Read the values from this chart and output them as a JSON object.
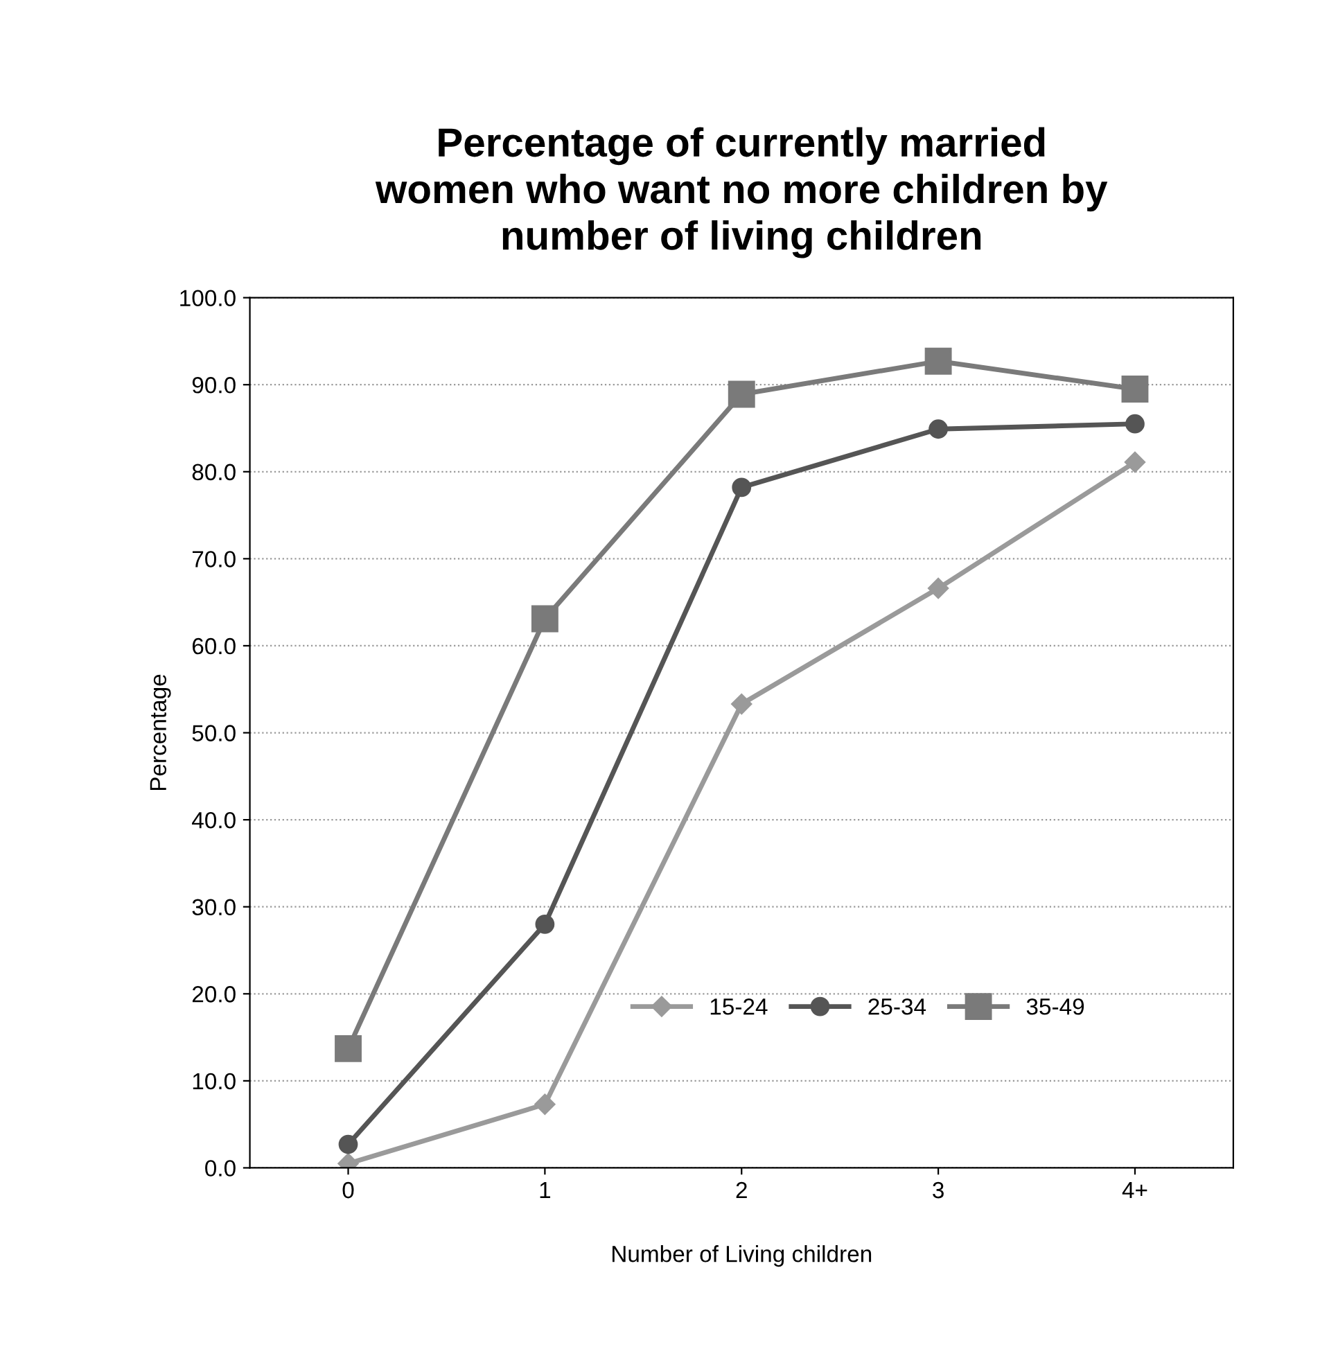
{
  "chart_data": {
    "type": "line",
    "title": "Percentage of currently married\nwomen who want no more children by\nnumber of living children",
    "xlabel": "Number of Living children",
    "ylabel": "Percentage",
    "categories": [
      "0",
      "1",
      "2",
      "3",
      "4+"
    ],
    "series": [
      {
        "name": "15-24",
        "color": "#9a9a9a",
        "marker": "diamond",
        "values": [
          0.5,
          7.3,
          53.3,
          66.6,
          81.1
        ]
      },
      {
        "name": "25-34",
        "color": "#555555",
        "marker": "circle",
        "values": [
          2.7,
          28.0,
          78.2,
          84.9,
          85.5
        ]
      },
      {
        "name": "35-49",
        "color": "#7a7a7a",
        "marker": "square",
        "values": [
          13.7,
          63.1,
          88.9,
          92.7,
          89.5
        ]
      }
    ],
    "ylim": [
      0,
      100
    ],
    "yticks": [
      {
        "value": 0,
        "label": "0.0"
      },
      {
        "value": 10,
        "label": "10.0"
      },
      {
        "value": 20,
        "label": "20.0"
      },
      {
        "value": 30,
        "label": "30.0"
      },
      {
        "value": 40,
        "label": "40.0"
      },
      {
        "value": 50,
        "label": "50.0"
      },
      {
        "value": 60,
        "label": "60.0"
      },
      {
        "value": 70,
        "label": "70.0"
      },
      {
        "value": 80,
        "label": "80.0"
      },
      {
        "value": 90,
        "label": "90.0"
      },
      {
        "value": 100,
        "label": "100.0"
      }
    ],
    "grid": "y",
    "legend": "bottom right",
    "line_style": "solid"
  }
}
